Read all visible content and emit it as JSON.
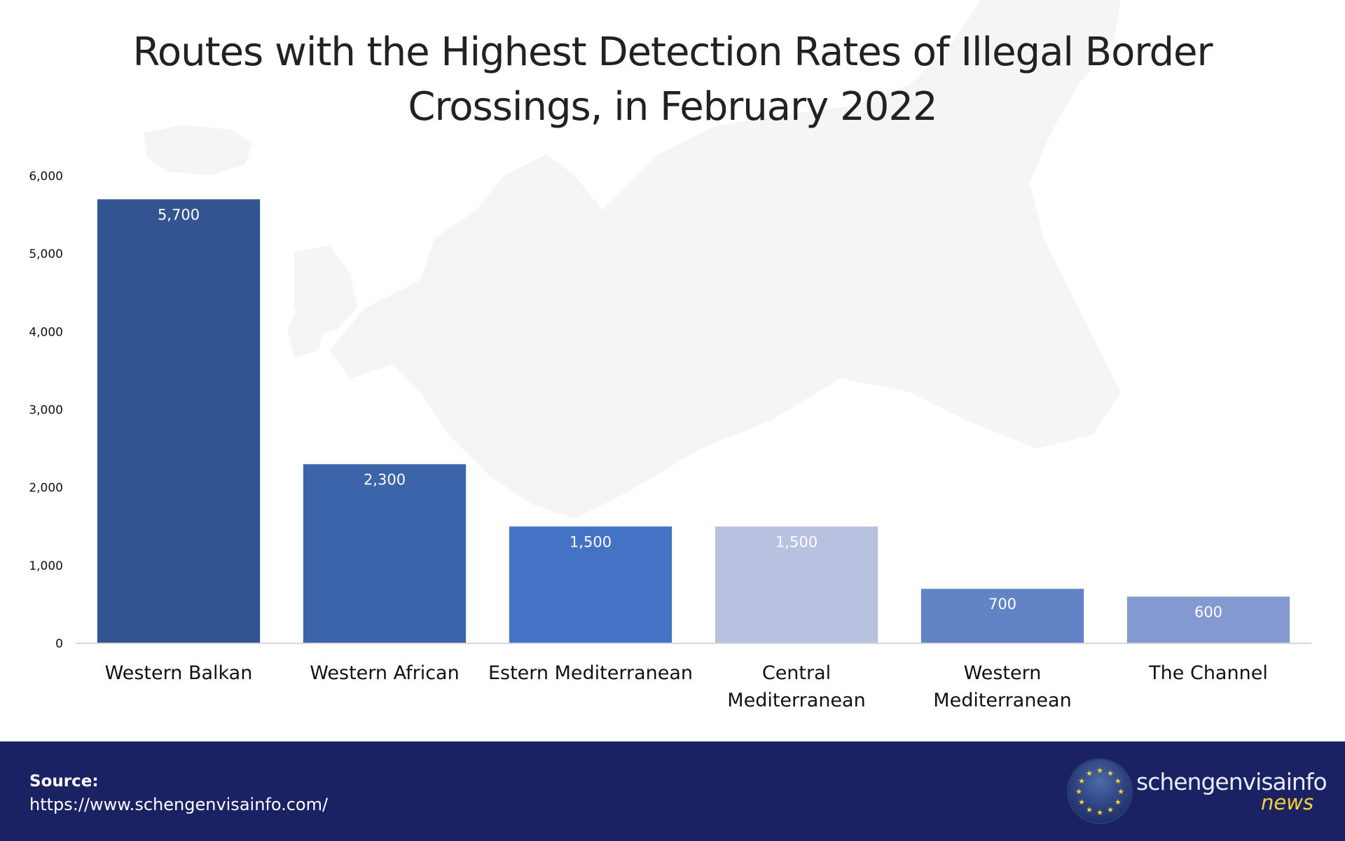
{
  "title": {
    "line1": "Routes with the Highest Detection Rates of Illegal Border",
    "line2": "Crossings, in February 2022"
  },
  "chart_data": {
    "type": "bar",
    "title": "Routes with the Highest Detection Rates of Illegal Border Crossings, in February 2022",
    "xlabel": "",
    "ylabel": "",
    "ylim": [
      0,
      6000
    ],
    "yticks": [
      0,
      1000,
      2000,
      3000,
      4000,
      5000,
      6000
    ],
    "ytick_labels": [
      "0",
      "1,000",
      "2,000",
      "3,000",
      "4,000",
      "5,000",
      "6,000"
    ],
    "grid": false,
    "legend": "none",
    "categories": [
      [
        "Western Balkan"
      ],
      [
        "Western African"
      ],
      [
        "Estern Mediterranean"
      ],
      [
        "Central",
        "Mediterranean"
      ],
      [
        "Western",
        "Mediterranean"
      ],
      [
        "The Channel"
      ]
    ],
    "values": [
      5700,
      2300,
      1500,
      1500,
      700,
      600
    ],
    "data_labels": [
      "5,700",
      "2,300",
      "1,500",
      "1,500",
      "700",
      "600"
    ],
    "colors": [
      "#325592",
      "#3c64ab",
      "#4472c4",
      "#b8c2e0",
      "#6283c6",
      "#8599d1"
    ]
  },
  "footer": {
    "source_label": "Source:",
    "source_url": "https://www.schengenvisainfo.com/",
    "logo_name": "schengenvisainfo",
    "logo_sub": "news",
    "bg_color": "#1b2263",
    "accent_color": "#f6d32d"
  }
}
